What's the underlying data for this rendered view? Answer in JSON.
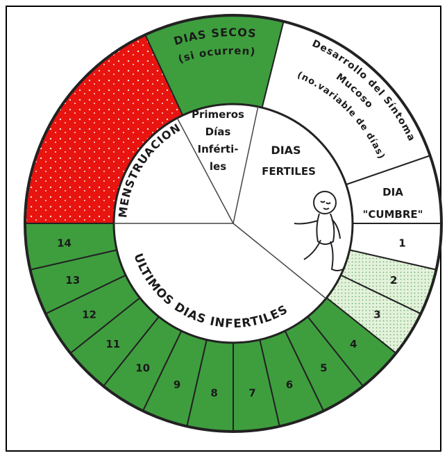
{
  "outer_ring": {
    "dry_days": [
      "DIAS SECOS",
      "(si ocurren)"
    ],
    "mucus_development": [
      "Desarrollo del Síntoma",
      "Mucoso",
      "(no.variable de días)"
    ],
    "peak_day": [
      "DIA",
      "\"CUMBRE\""
    ],
    "days": [
      "1",
      "2",
      "3",
      "4",
      "5",
      "6",
      "7",
      "8",
      "9",
      "10",
      "11",
      "12",
      "13",
      "14"
    ]
  },
  "inner_circle": {
    "menstruation": "MENSTRUACION",
    "first_infertile_days": [
      "Primeros",
      "Días",
      "Inférti-",
      "les"
    ],
    "fertile_days": [
      "DIAS",
      "FERTILES"
    ],
    "last_infertile_days": "ULTIMOS DIAS INFERTILES"
  }
}
